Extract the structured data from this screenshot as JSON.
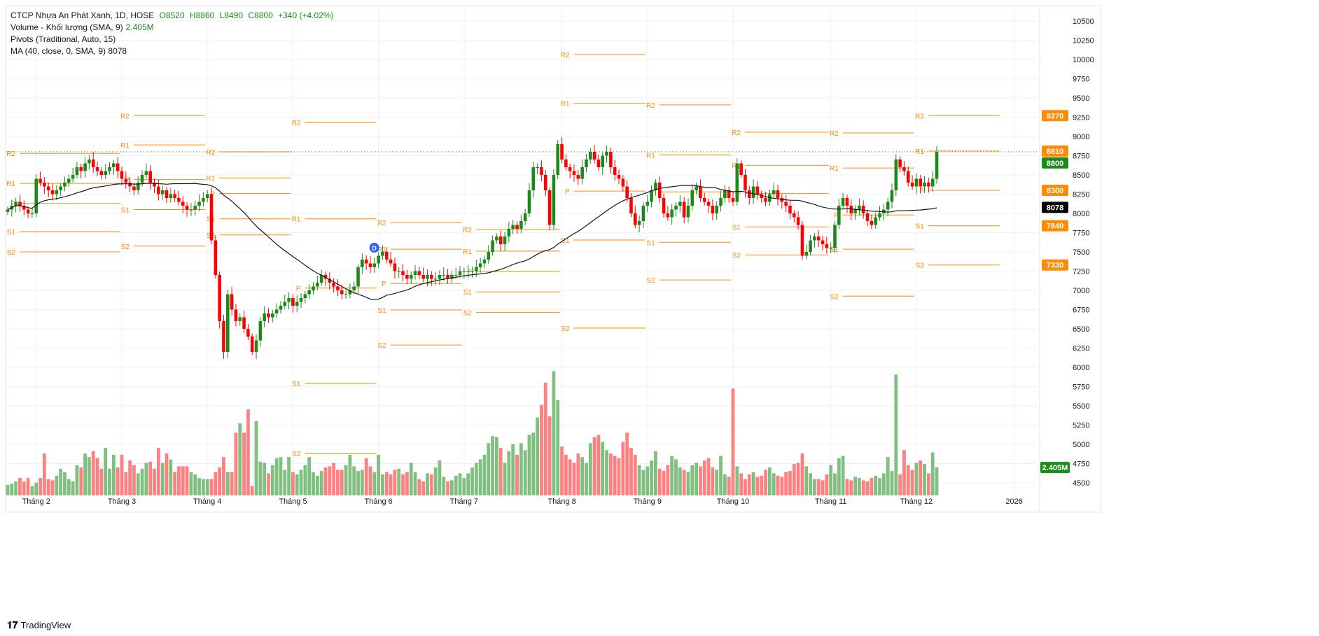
{
  "header": {
    "title": "CTCP Nhựa An Phát Xanh, 1D, HOSE",
    "open": "O8520",
    "high": "H8860",
    "low": "L8490",
    "close": "C8800",
    "change": "+340 (+4.02%)",
    "volume_label": "Volume - Khối lượng (SMA, 9)",
    "volume_value": "2.405M",
    "pivots_label": "Pivots (Traditional, Auto, 15)",
    "ma_label": "MA (40, close, 0, SMA, 9)",
    "ma_value": "8078"
  },
  "brand": "TradingView",
  "colors": {
    "up": "#1b8a1b",
    "down": "#f00",
    "vol_up": "#7fbf7f",
    "vol_down": "#ff8080",
    "pivot": "#ff8c00",
    "ma": "#131722"
  },
  "chart_data": {
    "type": "candlestick",
    "title": "CTCP Nhựa An Phát Xanh, 1D, HOSE",
    "ylim": [
      4300,
      10600
    ],
    "y_ticks": [
      10500,
      10250,
      10000,
      9750,
      9500,
      9250,
      9000,
      8750,
      8500,
      8250,
      8000,
      7750,
      7500,
      7250,
      7000,
      6750,
      6500,
      6250,
      6000,
      5750,
      5500,
      5250,
      5000,
      4750,
      4500
    ],
    "x_ticks": [
      {
        "label": "Tháng 2",
        "bar": 7
      },
      {
        "label": "Tháng 3",
        "bar": 28
      },
      {
        "label": "Tháng 4",
        "bar": 49
      },
      {
        "label": "Tháng 5",
        "bar": 70
      },
      {
        "label": "Tháng 6",
        "bar": 91
      },
      {
        "label": "Tháng 7",
        "bar": 112
      },
      {
        "label": "Tháng 8",
        "bar": 136
      },
      {
        "label": "Tháng 9",
        "bar": 157
      },
      {
        "label": "Tháng 10",
        "bar": 178
      },
      {
        "label": "Tháng 11",
        "bar": 202
      },
      {
        "label": "Tháng 12",
        "bar": 223
      },
      {
        "label": "2026",
        "bar": 247
      }
    ],
    "closes": [
      8050,
      8100,
      8150,
      8100,
      8050,
      8000,
      8000,
      8450,
      8400,
      8350,
      8300,
      8250,
      8300,
      8350,
      8400,
      8450,
      8500,
      8600,
      8550,
      8650,
      8700,
      8600,
      8550,
      8500,
      8550,
      8600,
      8650,
      8550,
      8450,
      8400,
      8350,
      8300,
      8400,
      8500,
      8550,
      8400,
      8350,
      8250,
      8300,
      8200,
      8250,
      8200,
      8150,
      8100,
      8050,
      8050,
      8100,
      8150,
      8200,
      8250,
      7650,
      7200,
      6600,
      6200,
      6950,
      6750,
      6600,
      6650,
      6500,
      6400,
      6200,
      6350,
      6600,
      6700,
      6650,
      6700,
      6750,
      6800,
      6850,
      6900,
      6800,
      6850,
      6900,
      6950,
      7000,
      7050,
      7100,
      7200,
      7150,
      7100,
      7050,
      7000,
      6950,
      6950,
      7000,
      7050,
      7300,
      7400,
      7350,
      7300,
      7350,
      7450,
      7500,
      7400,
      7350,
      7250,
      7250,
      7200,
      7150,
      7200,
      7250,
      7200,
      7150,
      7200,
      7150,
      7150,
      7200,
      7200,
      7150,
      7200,
      7200,
      7250,
      7250,
      7250,
      7250,
      7300,
      7350,
      7400,
      7500,
      7650,
      7700,
      7600,
      7700,
      7800,
      7850,
      7800,
      7900,
      8000,
      8300,
      8600,
      8600,
      8500,
      8300,
      7850,
      8500,
      8900,
      8700,
      8600,
      8550,
      8500,
      8450,
      8600,
      8700,
      8800,
      8700,
      8600,
      8750,
      8800,
      8600,
      8500,
      8450,
      8350,
      8200,
      8000,
      7850,
      7900,
      8100,
      8150,
      8300,
      8400,
      8200,
      8000,
      7950,
      8050,
      8100,
      8150,
      7950,
      8100,
      8300,
      8350,
      8200,
      8150,
      8100,
      8000,
      8100,
      8200,
      8300,
      8200,
      8150,
      8650,
      8500,
      8300,
      8200,
      8350,
      8250,
      8200,
      8150,
      8250,
      8300,
      8200,
      8150,
      8100,
      8000,
      7950,
      7850,
      7450,
      7500,
      7650,
      7700,
      7650,
      7600,
      7550,
      7550,
      7850,
      8100,
      8200,
      8100,
      8000,
      8050,
      8100,
      8000,
      7900,
      7850,
      7950,
      8000,
      8050,
      8150,
      8300,
      8700,
      8600,
      8550,
      8400,
      8350,
      8450,
      8350,
      8400,
      8350,
      8450,
      8800
    ],
    "volumes_m": [
      0.9,
      1.0,
      1.2,
      1.5,
      1.2,
      1.5,
      0.8,
      1.1,
      1.5,
      3.6,
      1.4,
      1.3,
      1.7,
      2.3,
      2.0,
      1.4,
      1.2,
      2.6,
      2.4,
      3.6,
      3.3,
      3.8,
      3.2,
      2.3,
      4.1,
      2.3,
      3.5,
      2.4,
      3.5,
      2.0,
      3.0,
      2.6,
      1.9,
      2.3,
      2.8,
      2.9,
      2.3,
      4.1,
      2.8,
      3.6,
      3.1,
      2.0,
      2.5,
      2.5,
      2.5,
      2.0,
      1.8,
      1.5,
      1.4,
      1.4,
      1.4,
      2.0,
      2.4,
      3.3,
      2.0,
      2.0,
      5.4,
      6.2,
      5.4,
      7.4,
      0.8,
      6.4,
      2.9,
      2.8,
      1.9,
      2.6,
      3.2,
      3.3,
      2.2,
      3.3,
      2.0,
      1.8,
      2.2,
      2.6,
      3.3,
      2.0,
      1.7,
      2.1,
      2.4,
      2.5,
      2.8,
      2.2,
      2.2,
      2.6,
      3.5,
      2.5,
      2.1,
      2.2,
      3.2,
      2.5,
      2.0,
      3.5,
      1.8,
      2.0,
      1.8,
      2.2,
      2.3,
      1.8,
      2.0,
      2.8,
      2.0,
      1.4,
      1.2,
      1.9,
      1.8,
      2.4,
      3.0,
      1.6,
      1.2,
      1.3,
      1.7,
      1.9,
      1.5,
      1.9,
      2.4,
      2.8,
      3.1,
      3.5,
      4.5,
      5.1,
      5.0,
      4.1,
      2.8,
      3.8,
      4.4,
      3.5,
      4.5,
      3.9,
      5.2,
      5.4,
      6.7,
      7.8,
      9.7,
      6.8,
      10.7,
      8.2,
      4.2,
      3.5,
      3.1,
      2.8,
      3.6,
      3.3,
      2.8,
      4.5,
      5.0,
      5.2,
      4.6,
      3.9,
      3.6,
      3.4,
      3.2,
      4.6,
      5.4,
      4.1,
      3.5,
      2.6,
      2.2,
      2.5,
      3.0,
      3.8,
      2.3,
      2.1,
      2.6,
      3.4,
      3.1,
      2.4,
      2.2,
      2.0,
      2.6,
      2.8,
      2.5,
      3.0,
      3.2,
      2.4,
      2.2,
      3.4,
      1.8,
      1.6,
      9.2,
      2.5,
      1.9,
      1.4,
      1.8,
      2.0,
      1.6,
      1.7,
      2.2,
      2.4,
      1.9,
      1.7,
      1.6,
      2.0,
      2.1,
      2.7,
      2.8,
      3.6,
      2.5,
      1.9,
      1.4,
      1.4,
      1.3,
      1.8,
      2.6,
      1.9,
      3.2,
      3.4,
      1.4,
      1.3,
      1.6,
      1.5,
      1.3,
      1.2,
      1.5,
      1.7,
      1.5,
      1.9,
      3.3,
      2.1,
      10.4,
      1.8,
      3.9,
      2.6,
      2.2,
      2.8,
      3.0,
      2.7,
      1.9,
      3.7,
      2.405
    ],
    "ma_period": 40,
    "pivot_periods": [
      {
        "from": 0,
        "to": 28,
        "R2": 8780,
        "R1": 8390,
        "P": 8130,
        "S1": 7765,
        "S2": 7500
      },
      {
        "from": 28,
        "to": 49,
        "R2": 9270,
        "R1": 8890,
        "P": 8440,
        "S1": 8050,
        "S2": 7575
      },
      {
        "from": 49,
        "to": 70,
        "R2": 8800,
        "R1": 8460,
        "P": 8260,
        "S1": 7930,
        "S2": 7720
      },
      {
        "from": 70,
        "to": 91,
        "R2": 9180,
        "R1": 7930,
        "P": 7030,
        "S1": 5790,
        "S2": 4880
      },
      {
        "from": 91,
        "to": 112,
        "R2": 7880,
        "R1": 7535,
        "P": 7090,
        "S1": 6745,
        "S2": 6290
      },
      {
        "from": 112,
        "to": 136,
        "R2": 7790,
        "R1": 7510,
        "P": 7245,
        "S1": 6980,
        "S2": 6715
      },
      {
        "from": 136,
        "to": 157,
        "R2": 10065,
        "R1": 9430,
        "P": 8290,
        "S1": 7655,
        "S2": 6510
      },
      {
        "from": 157,
        "to": 178,
        "R2": 9410,
        "R1": 8760,
        "P": 8280,
        "S1": 7625,
        "S2": 7135
      },
      {
        "from": 178,
        "to": 202,
        "R2": 9055,
        "R1": 8625,
        "P": 8260,
        "S1": 7825,
        "S2": 7460
      },
      {
        "from": 202,
        "to": 223,
        "R2": 9045,
        "R1": 8590,
        "P": 7980,
        "S1": 7535,
        "S2": 6925
      },
      {
        "from": 223,
        "to": 244,
        "R2": 9270,
        "R1": 8810,
        "P": 8300,
        "S1": 7840,
        "S2": 7330
      }
    ],
    "price_tags": [
      {
        "label": "9270",
        "value": 9270,
        "color": "#ff8c00"
      },
      {
        "label": "8810",
        "value": 8810,
        "color": "#ff8c00"
      },
      {
        "label": "8800",
        "value": 8800,
        "color": "#1b8a1b"
      },
      {
        "label": "8300",
        "value": 8300,
        "color": "#ff8c00"
      },
      {
        "label": "8078",
        "value": 8078,
        "color": "#000000"
      },
      {
        "label": "7840",
        "value": 7840,
        "color": "#ff8c00"
      },
      {
        "label": "7330",
        "value": 7330,
        "color": "#ff8c00"
      }
    ],
    "volume_tag": {
      "label": "2.405M",
      "color": "#1b8a1b"
    },
    "event_marker": {
      "label": "D",
      "bar": 91
    }
  }
}
